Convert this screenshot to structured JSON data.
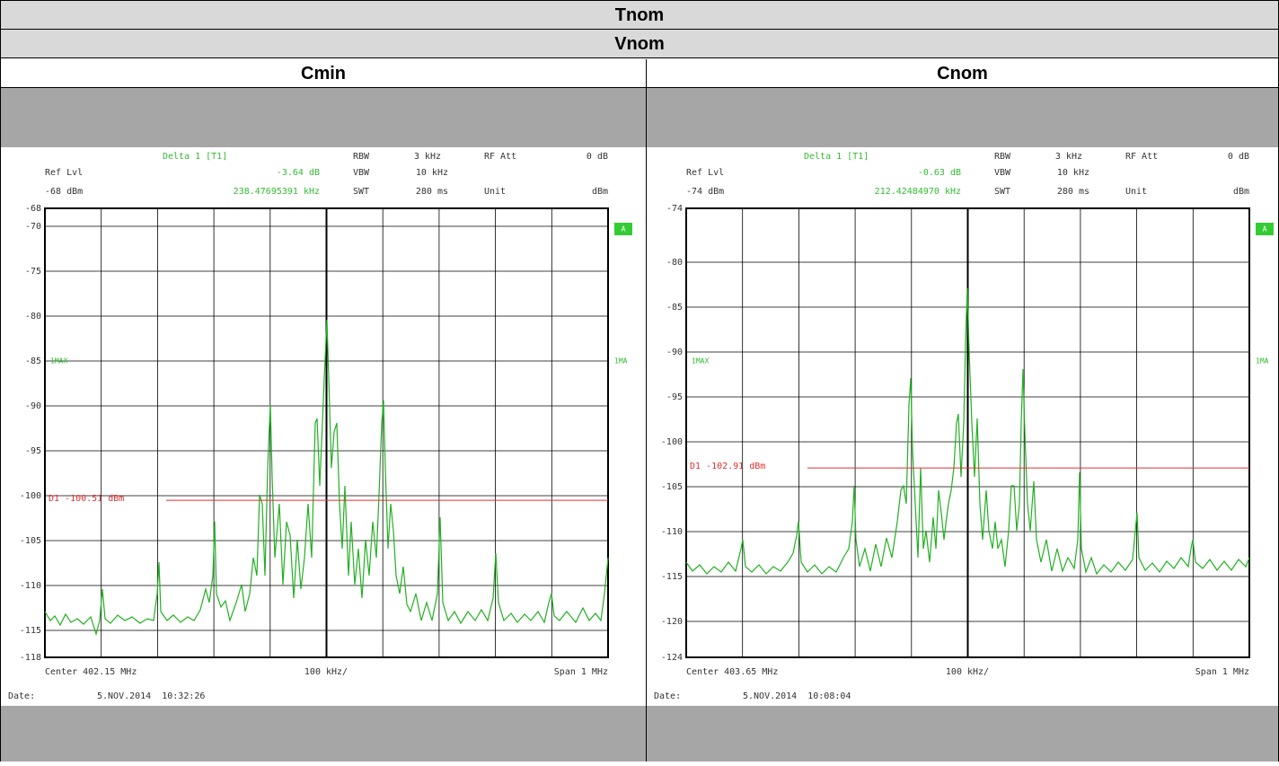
{
  "table": {
    "rows": [
      "Tnom",
      "Vnom"
    ],
    "columns": [
      {
        "header": "Cmin",
        "plot": {
          "marker": "Delta 1 [T1]",
          "marker_delta": "-3.64 dB",
          "marker_freq": "238.47695391 kHz",
          "ref_label": "Ref Lvl",
          "ref_level": "-68 dBm",
          "rbw_label": "RBW",
          "rbw": "3 kHz",
          "vbw_label": "VBW",
          "vbw": "10 kHz",
          "swt_label": "SWT",
          "swt": "280 ms",
          "att_label": "RF Att",
          "att": "0 dB",
          "unit_label": "Unit",
          "unit": "dBm",
          "ylim": [
            -118,
            -68
          ],
          "yticks": [
            -68,
            -70,
            -75,
            -80,
            -85,
            -90,
            -95,
            -100,
            -105,
            -110,
            -115,
            -118
          ],
          "display_line": {
            "value": -100.51,
            "label": "D1 -100.51 dBm"
          },
          "trace_label": "1MAX",
          "trace_label_right": "1MA",
          "screen_badge": "A",
          "center": "Center 402.15 MHz",
          "div": "100 kHz/",
          "span": "Span 1 MHz",
          "date_label": "Date:",
          "date": "5.NOV.2014  10:32:26"
        }
      },
      {
        "header": "Cnom",
        "plot": {
          "marker": "Delta 1 [T1]",
          "marker_delta": "-0.63 dB",
          "marker_freq": "212.42484970 kHz",
          "ref_label": "Ref Lvl",
          "ref_level": "-74 dBm",
          "rbw_label": "RBW",
          "rbw": "3 kHz",
          "vbw_label": "VBW",
          "vbw": "10 kHz",
          "swt_label": "SWT",
          "swt": "280 ms",
          "att_label": "RF Att",
          "att": "0 dB",
          "unit_label": "Unit",
          "unit": "dBm",
          "ylim": [
            -124,
            -74
          ],
          "yticks": [
            -74,
            -80,
            -85,
            -90,
            -95,
            -100,
            -105,
            -110,
            -115,
            -120,
            -124
          ],
          "display_line": {
            "value": -102.91,
            "label": "D1 -102.91 dBm"
          },
          "trace_label": "1MAX",
          "trace_label_right": "1MA",
          "screen_badge": "A",
          "center": "Center 403.65 MHz",
          "div": "100 kHz/",
          "span": "Span 1 MHz",
          "date_label": "Date:",
          "date": "5.NOV.2014  10:08:04"
        }
      }
    ]
  }
}
